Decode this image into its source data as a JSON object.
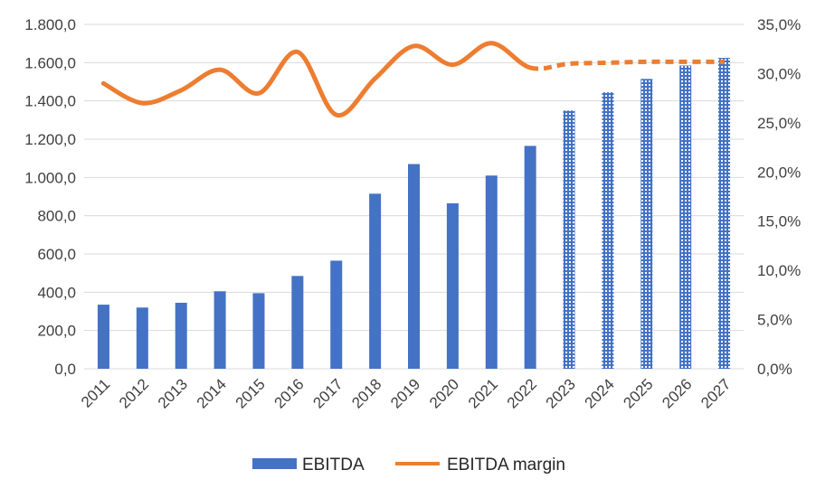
{
  "chart_data": {
    "type": "bar",
    "categories": [
      "2011",
      "2012",
      "2013",
      "2014",
      "2015",
      "2016",
      "2017",
      "2018",
      "2019",
      "2020",
      "2021",
      "2022",
      "2023",
      "2024",
      "2025",
      "2026",
      "2027"
    ],
    "series": [
      {
        "name": "EBITDA",
        "type": "bar",
        "axis": "left",
        "values": [
          335,
          320,
          345,
          405,
          395,
          485,
          565,
          915,
          1070,
          865,
          1010,
          1165,
          1350,
          1445,
          1515,
          1585,
          1625
        ],
        "forecast_from_index": 12
      },
      {
        "name": "EBITDA margin",
        "type": "line",
        "axis": "right",
        "values": [
          29.0,
          27.0,
          28.3,
          30.4,
          28.0,
          32.2,
          25.8,
          29.5,
          32.8,
          30.9,
          33.1,
          30.6,
          31.0,
          31.1,
          31.2,
          31.2,
          31.2
        ],
        "forecast_from_index": 11
      }
    ],
    "y_left_ticks": [
      "0,0",
      "200,0",
      "400,0",
      "600,0",
      "800,0",
      "1.000,0",
      "1.200,0",
      "1.400,0",
      "1.600,0",
      "1.800,0"
    ],
    "y_right_ticks": [
      "0,0%",
      "5,0%",
      "10,0%",
      "15,0%",
      "20,0%",
      "25,0%",
      "30,0%",
      "35,0%"
    ],
    "ylim_left": [
      0,
      1800
    ],
    "ylim_right": [
      0,
      35
    ],
    "grid": true,
    "legend_position": "bottom",
    "colors": {
      "bar": "#4472C4",
      "line": "#ED7D31",
      "grid": "#D9D9D9"
    }
  }
}
